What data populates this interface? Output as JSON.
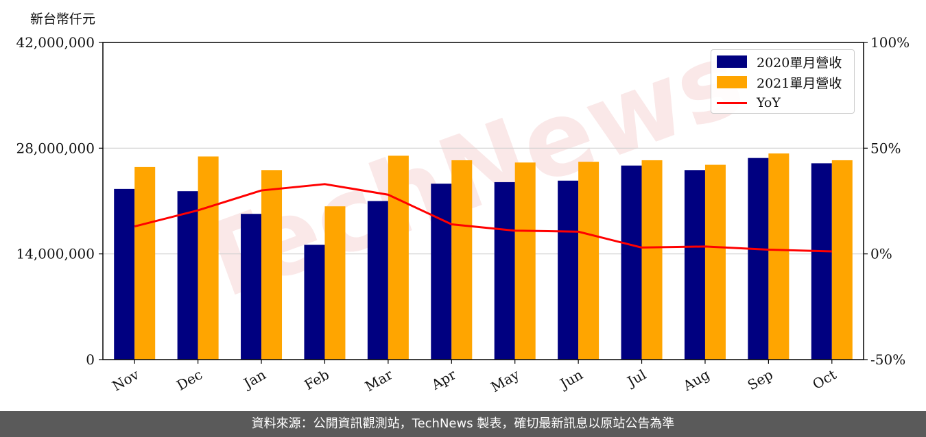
{
  "chart_data": {
    "type": "bar",
    "unit_label": "新台幣仟元",
    "categories": [
      "Nov",
      "Dec",
      "Jan",
      "Feb",
      "Mar",
      "Apr",
      "May",
      "Jun",
      "Jul",
      "Aug",
      "Sep",
      "Oct"
    ],
    "series": [
      {
        "name": "2020單月營收",
        "kind": "bar",
        "axis": "left",
        "color": "#000080",
        "values": [
          22600000,
          22300000,
          19300000,
          15200000,
          21000000,
          23300000,
          23500000,
          23700000,
          25700000,
          25100000,
          26700000,
          26000000
        ]
      },
      {
        "name": "2021單月營收",
        "kind": "bar",
        "axis": "left",
        "color": "#FFA500",
        "values": [
          25500000,
          26900000,
          25100000,
          20300000,
          27000000,
          26400000,
          26100000,
          26200000,
          26400000,
          25800000,
          27300000,
          26400000
        ]
      },
      {
        "name": "YoY",
        "kind": "line",
        "axis": "right",
        "color": "#FF0000",
        "values": [
          13,
          20.6,
          30,
          33,
          28,
          14,
          11,
          10.5,
          3,
          3.5,
          2,
          1.2
        ]
      }
    ],
    "ylim": [
      0,
      42000000
    ],
    "yticks": [
      "0",
      "14,000,000",
      "28,000,000",
      "42,000,000"
    ],
    "ytick_values": [
      0,
      14000000,
      28000000,
      42000000
    ],
    "y2lim": [
      -50,
      100
    ],
    "y2ticks": [
      "-50%",
      "0%",
      "50%",
      "100%"
    ],
    "y2tick_values": [
      -50,
      0,
      50,
      100
    ],
    "grid": "horizontal",
    "legend_position": "top-right",
    "watermark": "TechNews"
  },
  "footer": "資料來源：公開資訊觀測站，TechNews 製表，確切最新訊息以原站公告為準"
}
